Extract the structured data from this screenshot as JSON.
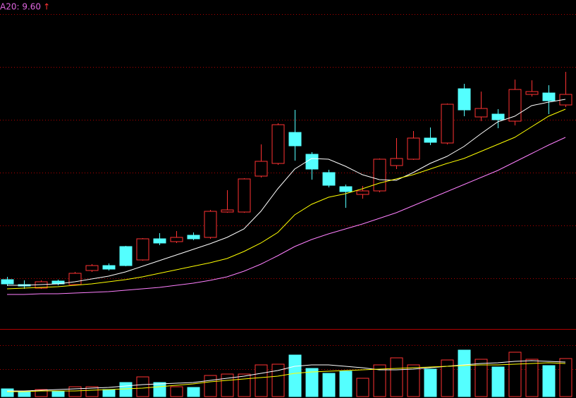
{
  "chart_data": {
    "type": "candlestick",
    "label": "A20: 9.60",
    "label_color": "#e066e0",
    "arrow": "↑",
    "arrow_color": "#ff3232",
    "up_color": "#ff3232",
    "down_color": "#54ffff",
    "ylim": [
      4.2,
      13.5
    ],
    "ygrid": [
      13.1,
      11.6,
      10.1,
      8.6,
      7.1,
      5.6
    ],
    "open": [
      5.56,
      5.42,
      5.32,
      5.52,
      5.42,
      5.82,
      5.96,
      6.5,
      6.12,
      6.72,
      6.64,
      6.82,
      6.76,
      7.48,
      7.48,
      8.5,
      8.86,
      9.74,
      9.12,
      8.6,
      8.2,
      7.98,
      8.08,
      8.8,
      8.98,
      9.58,
      9.44,
      10.98,
      10.18,
      10.26,
      10.06,
      10.82,
      10.86,
      10.52
    ],
    "close": [
      5.44,
      5.38,
      5.5,
      5.44,
      5.74,
      5.96,
      5.86,
      5.96,
      6.72,
      6.6,
      6.76,
      6.72,
      7.5,
      7.54,
      8.42,
      8.92,
      9.96,
      9.36,
      8.7,
      8.24,
      8.06,
      8.08,
      8.98,
      9.0,
      9.58,
      9.46,
      10.54,
      10.38,
      10.42,
      10.1,
      10.96,
      10.9,
      10.64,
      10.82
    ],
    "high": [
      5.64,
      5.54,
      5.54,
      5.56,
      5.78,
      6.0,
      6.02,
      6.52,
      6.74,
      6.88,
      6.94,
      6.9,
      7.54,
      8.1,
      8.44,
      9.4,
      10.0,
      10.38,
      9.18,
      8.68,
      8.26,
      8.22,
      9.0,
      9.58,
      9.78,
      9.88,
      10.56,
      11.12,
      10.9,
      10.4,
      11.24,
      11.22,
      11.08,
      11.46
    ],
    "low": [
      5.38,
      5.3,
      5.3,
      5.4,
      5.4,
      5.78,
      5.82,
      5.94,
      6.1,
      6.54,
      6.6,
      6.68,
      6.72,
      7.46,
      7.46,
      8.46,
      8.82,
      8.94,
      8.4,
      8.18,
      7.6,
      7.86,
      8.04,
      8.7,
      8.96,
      9.38,
      9.4,
      10.2,
      10.06,
      9.86,
      9.94,
      10.76,
      10.26,
      10.46
    ],
    "ma": [
      {
        "color": "#ffffff",
        "values": [
          5.4,
          5.4,
          5.42,
          5.44,
          5.5,
          5.58,
          5.66,
          5.78,
          5.94,
          6.1,
          6.26,
          6.42,
          6.58,
          6.76,
          7.0,
          7.5,
          8.14,
          8.7,
          9.0,
          8.98,
          8.78,
          8.54,
          8.4,
          8.38,
          8.6,
          8.86,
          9.06,
          9.34,
          9.7,
          10.04,
          10.2,
          10.5,
          10.6,
          10.68
        ]
      },
      {
        "color": "#ffff00",
        "values": [
          5.3,
          5.32,
          5.34,
          5.36,
          5.4,
          5.44,
          5.5,
          5.56,
          5.64,
          5.74,
          5.84,
          5.94,
          6.04,
          6.16,
          6.36,
          6.6,
          6.9,
          7.4,
          7.7,
          7.9,
          8.0,
          8.14,
          8.3,
          8.42,
          8.54,
          8.7,
          8.86,
          9.0,
          9.2,
          9.4,
          9.6,
          9.9,
          10.2,
          10.4
        ]
      },
      {
        "color": "#ff80ff",
        "values": [
          5.14,
          5.14,
          5.16,
          5.16,
          5.18,
          5.2,
          5.22,
          5.26,
          5.3,
          5.34,
          5.4,
          5.46,
          5.54,
          5.64,
          5.8,
          6.0,
          6.24,
          6.5,
          6.7,
          6.86,
          7.0,
          7.14,
          7.3,
          7.46,
          7.66,
          7.86,
          8.06,
          8.26,
          8.46,
          8.66,
          8.9,
          9.14,
          9.38,
          9.6
        ]
      }
    ],
    "volume": {
      "ylim": [
        0,
        95
      ],
      "ygrid": [
        73,
        39
      ],
      "values": [
        11,
        8,
        10,
        8,
        14,
        14,
        10,
        20,
        28,
        20,
        14,
        13,
        30,
        32,
        32,
        45,
        46,
        59,
        40,
        33,
        36,
        26,
        45,
        55,
        45,
        39,
        52,
        66,
        53,
        42,
        63,
        53,
        44,
        54
      ],
      "ma": [
        {
          "color": "#ffffff",
          "values": [
            8,
            8,
            9,
            10,
            11,
            12,
            13,
            15,
            17,
            18,
            19,
            20,
            23,
            26,
            29,
            33,
            37,
            43,
            45,
            45,
            43,
            41,
            38,
            38,
            39,
            41,
            43,
            45,
            47,
            48,
            50,
            51,
            50,
            49
          ]
        },
        {
          "color": "#ffff00",
          "values": [
            7,
            7,
            8,
            8,
            8,
            9,
            10,
            11,
            12,
            14,
            16,
            18,
            21,
            23,
            25,
            27,
            29,
            33,
            35,
            36,
            37,
            38,
            39,
            40,
            41,
            42,
            43,
            44,
            45,
            45,
            46,
            47,
            48,
            47
          ]
        }
      ]
    }
  }
}
